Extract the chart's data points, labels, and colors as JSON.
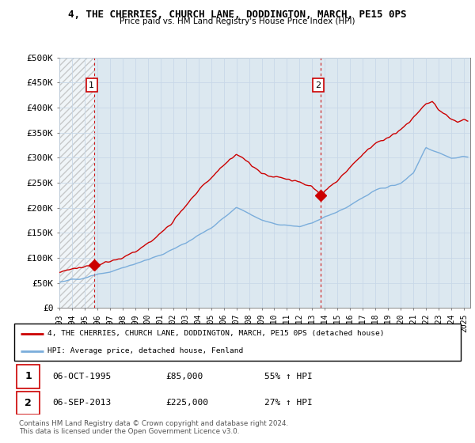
{
  "title": "4, THE CHERRIES, CHURCH LANE, DODDINGTON, MARCH, PE15 0PS",
  "subtitle": "Price paid vs. HM Land Registry's House Price Index (HPI)",
  "ylabel_ticks": [
    "£0",
    "£50K",
    "£100K",
    "£150K",
    "£200K",
    "£250K",
    "£300K",
    "£350K",
    "£400K",
    "£450K",
    "£500K"
  ],
  "ytick_values": [
    0,
    50000,
    100000,
    150000,
    200000,
    250000,
    300000,
    350000,
    400000,
    450000,
    500000
  ],
  "ylim": [
    0,
    500000
  ],
  "xlim_start": 1993.0,
  "xlim_end": 2025.5,
  "sale1_x": 1995.75,
  "sale1_y": 85000,
  "sale1_label": "1",
  "sale2_x": 2013.67,
  "sale2_y": 225000,
  "sale2_label": "2",
  "red_line_color": "#cc0000",
  "blue_line_color": "#7aaddb",
  "vline_color": "#cc0000",
  "grid_color": "#c8d8e8",
  "plot_bg_color": "#dce8f0",
  "legend_label_red": "4, THE CHERRIES, CHURCH LANE, DODDINGTON, MARCH, PE15 0PS (detached house)",
  "legend_label_blue": "HPI: Average price, detached house, Fenland",
  "table_row1": [
    "1",
    "06-OCT-1995",
    "£85,000",
    "55% ↑ HPI"
  ],
  "table_row2": [
    "2",
    "06-SEP-2013",
    "£225,000",
    "27% ↑ HPI"
  ],
  "footer": "Contains HM Land Registry data © Crown copyright and database right 2024.\nThis data is licensed under the Open Government Licence v3.0.",
  "xtick_years": [
    1993,
    1994,
    1995,
    1996,
    1997,
    1998,
    1999,
    2000,
    2001,
    2002,
    2003,
    2004,
    2005,
    2006,
    2007,
    2008,
    2009,
    2010,
    2011,
    2012,
    2013,
    2014,
    2015,
    2016,
    2017,
    2018,
    2019,
    2020,
    2021,
    2022,
    2023,
    2024,
    2025
  ]
}
